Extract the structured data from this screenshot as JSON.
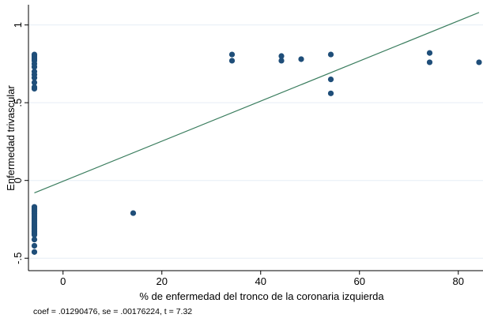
{
  "chart_data": {
    "type": "scatter",
    "xlabel": "% de enfermedad del tronco de la coronaria izquierda",
    "ylabel": "Enfermedad trivascular",
    "note": "coef = .01290476, se = .00176224, t = 7.32",
    "xlim": [
      -7,
      85
    ],
    "ylim": [
      -0.58,
      1.13
    ],
    "x_ticks": [
      0,
      20,
      40,
      60,
      80
    ],
    "x_tick_labels": [
      "0",
      "20",
      "40",
      "60",
      "80"
    ],
    "y_ticks": [
      -0.5,
      0,
      0.5,
      1
    ],
    "y_tick_labels": [
      "-.5",
      "0",
      ".5",
      "1"
    ],
    "grid": true,
    "colors": {
      "points": "#1f4e79",
      "fit_line": "#3a7d5e",
      "grid": "#e6eef5",
      "axis": "#000000"
    },
    "series": [
      {
        "points": [
          {
            "x": -5.8,
            "y": 0.81
          },
          {
            "x": -5.8,
            "y": 0.8
          },
          {
            "x": -5.8,
            "y": 0.79
          },
          {
            "x": -5.8,
            "y": 0.78
          },
          {
            "x": -5.8,
            "y": 0.77
          },
          {
            "x": -5.8,
            "y": 0.75
          },
          {
            "x": -5.8,
            "y": 0.73
          },
          {
            "x": -5.8,
            "y": 0.7
          },
          {
            "x": -5.8,
            "y": 0.68
          },
          {
            "x": -5.8,
            "y": 0.66
          },
          {
            "x": -5.8,
            "y": 0.63
          },
          {
            "x": -5.8,
            "y": 0.6
          },
          {
            "x": -5.8,
            "y": 0.59
          },
          {
            "x": -5.8,
            "y": -0.17
          },
          {
            "x": -5.8,
            "y": -0.18
          },
          {
            "x": -5.8,
            "y": -0.19
          },
          {
            "x": -5.8,
            "y": -0.2
          },
          {
            "x": -5.8,
            "y": -0.21
          },
          {
            "x": -5.8,
            "y": -0.22
          },
          {
            "x": -5.8,
            "y": -0.23
          },
          {
            "x": -5.8,
            "y": -0.24
          },
          {
            "x": -5.8,
            "y": -0.25
          },
          {
            "x": -5.8,
            "y": -0.26
          },
          {
            "x": -5.8,
            "y": -0.27
          },
          {
            "x": -5.8,
            "y": -0.28
          },
          {
            "x": -5.8,
            "y": -0.29
          },
          {
            "x": -5.8,
            "y": -0.3
          },
          {
            "x": -5.8,
            "y": -0.31
          },
          {
            "x": -5.8,
            "y": -0.32
          },
          {
            "x": -5.8,
            "y": -0.33
          },
          {
            "x": -5.8,
            "y": -0.34
          },
          {
            "x": -5.8,
            "y": -0.35
          },
          {
            "x": -5.8,
            "y": -0.38
          },
          {
            "x": -5.8,
            "y": -0.42
          },
          {
            "x": -5.8,
            "y": -0.46
          },
          {
            "x": 14.2,
            "y": -0.21
          },
          {
            "x": 34.2,
            "y": 0.81
          },
          {
            "x": 34.2,
            "y": 0.77
          },
          {
            "x": 44.2,
            "y": 0.8
          },
          {
            "x": 44.2,
            "y": 0.77
          },
          {
            "x": 48.2,
            "y": 0.78
          },
          {
            "x": 54.2,
            "y": 0.81
          },
          {
            "x": 54.2,
            "y": 0.65
          },
          {
            "x": 54.2,
            "y": 0.56
          },
          {
            "x": 74.2,
            "y": 0.82
          },
          {
            "x": 74.2,
            "y": 0.76
          },
          {
            "x": 84.2,
            "y": 0.76
          }
        ]
      }
    ],
    "fit_line": {
      "x": [
        -5.8,
        84.2
      ],
      "y": [
        -0.08,
        1.08
      ]
    }
  }
}
